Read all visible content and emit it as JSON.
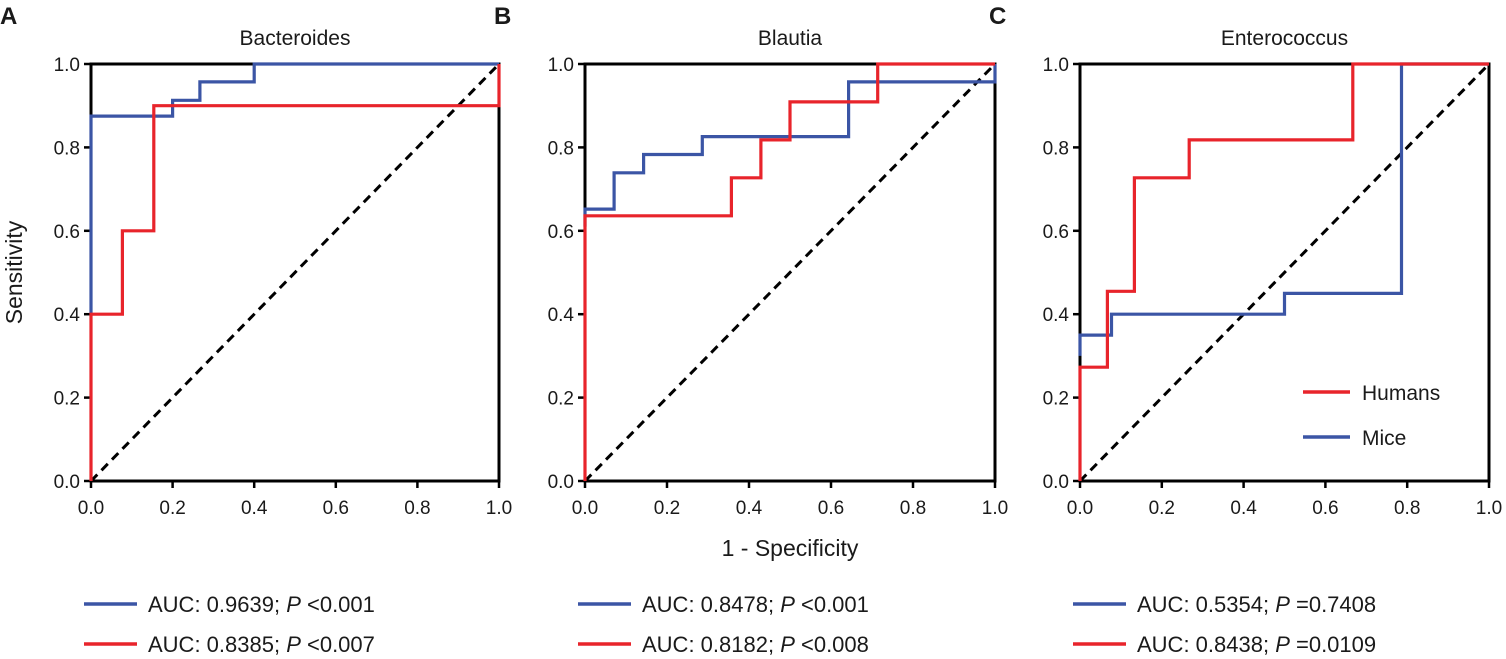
{
  "chart_data": [
    {
      "type": "line",
      "panel": "A",
      "title": "Bacteroides",
      "xlabel": "",
      "ylabel": "Sensitivity",
      "xlim": [
        0,
        1
      ],
      "ylim": [
        0,
        1
      ],
      "xticks": [
        "0.0",
        "0.2",
        "0.4",
        "0.6",
        "0.8",
        "1.0"
      ],
      "yticks": [
        "0.0",
        "0.2",
        "0.4",
        "0.6",
        "0.8",
        "1.0"
      ],
      "grid": false,
      "series": [
        {
          "name": "Mice",
          "color": "#3b55a5",
          "x": [
            0,
            0,
            0,
            0.2,
            0.2,
            0.267,
            0.267,
            0.4,
            0.4,
            1.0
          ],
          "y": [
            0.4,
            0.4,
            0.875,
            0.875,
            0.913,
            0.913,
            0.957,
            0.957,
            1.0,
            1.0
          ]
        },
        {
          "name": "Humans",
          "color": "#e8242b",
          "x": [
            0,
            0,
            0.077,
            0.077,
            0.154,
            0.154,
            1.0,
            1.0
          ],
          "y": [
            0,
            0.4,
            0.4,
            0.6,
            0.6,
            0.9,
            0.9,
            1.0
          ]
        },
        {
          "name": "reference",
          "color": "#000000",
          "dashed": true,
          "x": [
            0,
            1
          ],
          "y": [
            0,
            1
          ]
        }
      ],
      "auc_lines": [
        {
          "series": "Mice",
          "color": "#3b55a5",
          "prefix": "AUC: 0.9639; ",
          "p_letter": "P",
          "suffix": " <0.001"
        },
        {
          "series": "Humans",
          "color": "#e8242b",
          "prefix": "AUC: 0.8385; ",
          "p_letter": "P",
          "suffix": " <0.007"
        }
      ]
    },
    {
      "type": "line",
      "panel": "B",
      "title": "Blautia",
      "xlabel": "1 - Specificity",
      "ylabel": "",
      "xlim": [
        0,
        1
      ],
      "ylim": [
        0,
        1
      ],
      "xticks": [
        "0.0",
        "0.2",
        "0.4",
        "0.6",
        "0.8",
        "1.0"
      ],
      "yticks": [
        "0.0",
        "0.2",
        "0.4",
        "0.6",
        "0.8",
        "1.0"
      ],
      "grid": false,
      "series": [
        {
          "name": "Mice",
          "color": "#3b55a5",
          "x": [
            0,
            0,
            0.071,
            0.071,
            0.143,
            0.143,
            0.286,
            0.286,
            0.643,
            0.643,
            1.0,
            1.0
          ],
          "y": [
            0.61,
            0.652,
            0.652,
            0.739,
            0.739,
            0.783,
            0.783,
            0.826,
            0.826,
            0.957,
            0.957,
            1.0
          ]
        },
        {
          "name": "Humans",
          "color": "#e8242b",
          "x": [
            0,
            0,
            0.357,
            0.357,
            0.429,
            0.429,
            0.5,
            0.5,
            0.714,
            0.714,
            1.0
          ],
          "y": [
            0,
            0.636,
            0.636,
            0.727,
            0.727,
            0.818,
            0.818,
            0.909,
            0.909,
            1.0,
            1.0
          ]
        },
        {
          "name": "reference",
          "color": "#000000",
          "dashed": true,
          "x": [
            0,
            1
          ],
          "y": [
            0,
            1
          ]
        }
      ],
      "auc_lines": [
        {
          "series": "Mice",
          "color": "#3b55a5",
          "prefix": "AUC: 0.8478; ",
          "p_letter": "P",
          "suffix": " <0.001"
        },
        {
          "series": "Humans",
          "color": "#e8242b",
          "prefix": "AUC: 0.8182; ",
          "p_letter": "P",
          "suffix": " <0.008"
        }
      ]
    },
    {
      "type": "line",
      "panel": "C",
      "title": "Enterococcus",
      "xlabel": "",
      "ylabel": "",
      "xlim": [
        0,
        1
      ],
      "ylim": [
        0,
        1
      ],
      "xticks": [
        "0.0",
        "0.2",
        "0.4",
        "0.6",
        "0.8",
        "1.0"
      ],
      "yticks": [
        "0.0",
        "0.2",
        "0.4",
        "0.6",
        "0.8",
        "1.0"
      ],
      "grid": false,
      "legend": {
        "position": "lower-right",
        "entries": [
          {
            "label": "Humans",
            "color": "#e8242b"
          },
          {
            "label": "Mice",
            "color": "#3b55a5"
          }
        ]
      },
      "series": [
        {
          "name": "Mice",
          "color": "#3b55a5",
          "x": [
            0,
            0,
            0.077,
            0.077,
            0.5,
            0.5,
            0.786,
            0.786,
            1.0
          ],
          "y": [
            0.3,
            0.35,
            0.35,
            0.4,
            0.4,
            0.45,
            0.45,
            1.0,
            1.0
          ]
        },
        {
          "name": "Humans",
          "color": "#e8242b",
          "x": [
            0,
            0,
            0.067,
            0.067,
            0.133,
            0.133,
            0.267,
            0.267,
            0.667,
            0.667,
            1.0
          ],
          "y": [
            0,
            0.273,
            0.273,
            0.455,
            0.455,
            0.727,
            0.727,
            0.818,
            0.818,
            1.0,
            1.0
          ]
        },
        {
          "name": "reference",
          "color": "#000000",
          "dashed": true,
          "x": [
            0,
            1
          ],
          "y": [
            0,
            1
          ]
        }
      ],
      "auc_lines": [
        {
          "series": "Mice",
          "color": "#3b55a5",
          "prefix": "AUC: 0.5354; ",
          "p_letter": "P",
          "suffix": " =0.7408"
        },
        {
          "series": "Humans",
          "color": "#e8242b",
          "prefix": "AUC: 0.8438; ",
          "p_letter": "P",
          "suffix": " =0.0109"
        }
      ]
    }
  ]
}
